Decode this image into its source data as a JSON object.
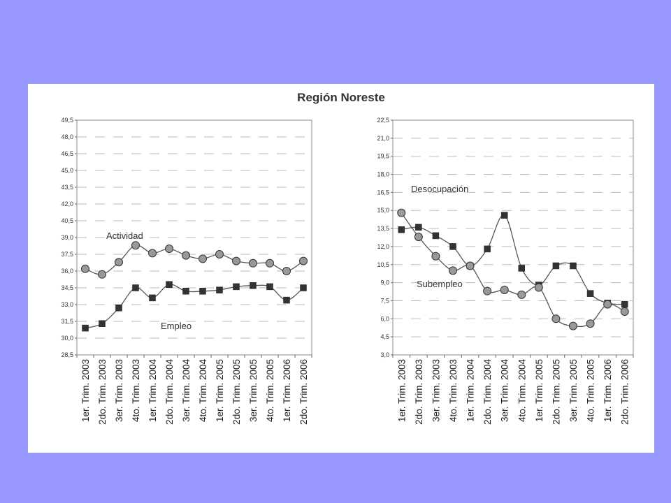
{
  "page": {
    "title": "Región Noreste"
  },
  "colors": {
    "background": "#9999FF",
    "panel": "#FFFFFF",
    "circle_fill": "#999999",
    "square_fill": "#333333",
    "line": "#555555",
    "grid": "#BBBBBB"
  },
  "chart_data": [
    {
      "type": "line",
      "title": "",
      "xlabel": "",
      "ylabel": "",
      "ylim": [
        28.5,
        49.5
      ],
      "yticks": [
        "28,5",
        "30,0",
        "31,5",
        "33,0",
        "34,5",
        "36,0",
        "37,5",
        "39,0",
        "40,5",
        "42,0",
        "43,5",
        "45,0",
        "46,5",
        "48,0",
        "49,5"
      ],
      "grid": true,
      "categories": [
        "1er. Trim. 2003",
        "2do. Trim. 2003",
        "3er. Trim. 2003",
        "4to. Trim. 2003",
        "1er. Trim. 2004",
        "2do. Trim. 2004",
        "3er. Trim. 2004",
        "4to. Trim. 2004",
        "1er. Trim. 2005",
        "2do. Trim. 2005",
        "3er. Trim. 2005",
        "4to. Trim. 2005",
        "1er. Trim. 2006",
        "2do. Trim. 2006"
      ],
      "series": [
        {
          "name": "Actividad",
          "marker": "circle",
          "values": [
            36.2,
            35.7,
            36.8,
            38.3,
            37.6,
            38.0,
            37.4,
            37.1,
            37.5,
            36.9,
            36.7,
            36.7,
            36.0,
            36.9
          ]
        },
        {
          "name": "Empleo",
          "marker": "square",
          "values": [
            30.9,
            31.3,
            32.7,
            34.5,
            33.6,
            34.8,
            34.2,
            34.2,
            34.3,
            34.6,
            34.7,
            34.6,
            33.4,
            34.5
          ]
        }
      ]
    },
    {
      "type": "line",
      "title": "",
      "xlabel": "",
      "ylabel": "",
      "ylim": [
        3.0,
        22.5
      ],
      "yticks": [
        "3,0",
        "4,5",
        "6,0",
        "7,5",
        "9,0",
        "10,5",
        "12,0",
        "13,5",
        "15,0",
        "16,5",
        "18,0",
        "19,5",
        "21,0",
        "22,5"
      ],
      "grid": true,
      "categories": [
        "1er. Trim. 2003",
        "2do. Trim. 2003",
        "3er. Trim. 2003",
        "4to. Trim. 2003",
        "1er. Trim. 2004",
        "2do. Trim. 2004",
        "3er. Trim. 2004",
        "4to. Trim. 2004",
        "1er. Trim. 2005",
        "2do. Trim. 2005",
        "3er. Trim. 2005",
        "4to. Trim. 2005",
        "1er. Trim. 2006",
        "2do. Trim. 2006"
      ],
      "series": [
        {
          "name": "Desocupación",
          "marker": "square",
          "values": [
            13.4,
            13.6,
            12.9,
            12.0,
            10.4,
            11.8,
            14.6,
            10.2,
            8.8,
            10.4,
            10.4,
            8.1,
            7.3,
            7.2
          ]
        },
        {
          "name": "Subempleo",
          "marker": "circle",
          "values": [
            14.8,
            12.8,
            11.2,
            10.0,
            10.4,
            8.3,
            8.4,
            8.0,
            8.6,
            6.0,
            5.4,
            5.6,
            7.2,
            6.6
          ]
        }
      ]
    }
  ]
}
